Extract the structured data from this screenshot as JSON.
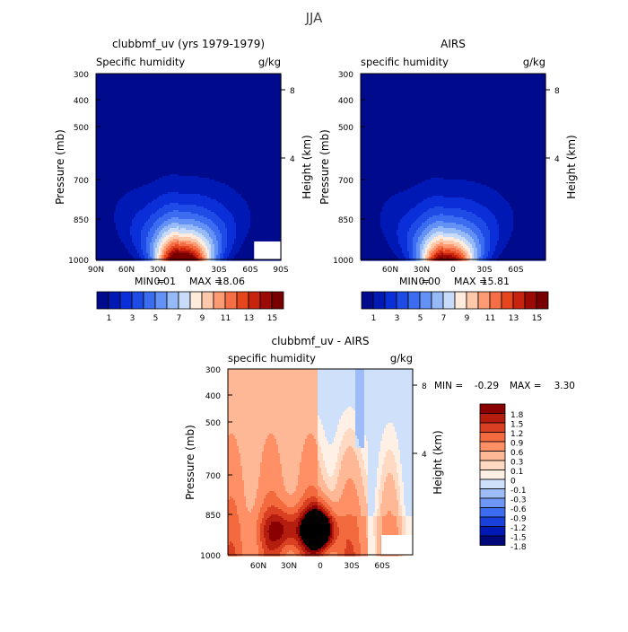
{
  "title": "JJA",
  "colors": {
    "field_scale": [
      "#000a8c",
      "#0019b4",
      "#0a2ed7",
      "#1e4be6",
      "#3c6cf0",
      "#6491f5",
      "#96b9f8",
      "#c8dcfa",
      "#ffebdc",
      "#ffc8aa",
      "#ff9b73",
      "#f56e46",
      "#e6461e",
      "#c8230f",
      "#9b0a05",
      "#780000"
    ],
    "diff_scale": [
      "#00087a",
      "#0019b4",
      "#1a40dc",
      "#3c6cf0",
      "#6e96f5",
      "#9ebcf8",
      "#cfe0fa",
      "#fff0e6",
      "#ffd9c2",
      "#ffb896",
      "#ff8f64",
      "#f26a3e",
      "#d94021",
      "#b51e0e",
      "#8a0000"
    ]
  },
  "chart_data": [
    {
      "type": "heatmap",
      "id": "model",
      "title": "clubbmf_uv (yrs 1979-1979)",
      "left_label": "Specific humidity",
      "units": "g/kg",
      "ylabel": "Pressure (mb)",
      "ylabel_right": "Height (km)",
      "pressure_ticks": [
        300,
        400,
        500,
        700,
        850,
        1000
      ],
      "height_ticks": [
        "8",
        "4"
      ],
      "x_ticks": [
        "90N",
        "60N",
        "30N",
        "0",
        "30S",
        "60S",
        "90S"
      ],
      "xlim": [
        90,
        -90
      ],
      "ylim_mb": [
        1000,
        300
      ],
      "stats": {
        "min_label": "MIN =",
        "min": "0.01",
        "max_label": "MAX =",
        "max": "18.06"
      },
      "colorbar_labels": [
        "1",
        "3",
        "5",
        "7",
        "9",
        "11",
        "13",
        "15"
      ],
      "max_value": 18.06,
      "peak_lat": 5,
      "missing_region": {
        "lat_from": -64,
        "lat_to": -90,
        "p_from": 890,
        "p_to": 1000
      }
    },
    {
      "type": "heatmap",
      "id": "obs",
      "title": "AIRS",
      "left_label": "specific humidity",
      "units": "g/kg",
      "ylabel": "Pressure (mb)",
      "ylabel_right": "Height (km)",
      "pressure_ticks": [
        300,
        400,
        500,
        700,
        850,
        1000
      ],
      "height_ticks": [
        "8",
        "4"
      ],
      "x_ticks": [
        "60N",
        "30N",
        "0",
        "30S",
        "60S"
      ],
      "xlim": [
        88,
        -88
      ],
      "ylim_mb": [
        1000,
        300
      ],
      "stats": {
        "min_label": "MIN =",
        "min": "0.00",
        "max_label": "MAX =",
        "max": "15.81"
      },
      "colorbar_labels": [
        "1",
        "3",
        "5",
        "7",
        "9",
        "11",
        "13",
        "15"
      ],
      "max_value": 15.81,
      "peak_lat": 5
    },
    {
      "type": "heatmap",
      "id": "diff",
      "title": "clubbmf_uv - AIRS",
      "left_label": "specific humidity",
      "units": "g/kg",
      "ylabel": "Pressure (mb)",
      "ylabel_right": "Height (km)",
      "pressure_ticks": [
        300,
        400,
        500,
        700,
        850,
        1000
      ],
      "height_ticks": [
        "8",
        "4"
      ],
      "x_ticks": [
        "60N",
        "30N",
        "0",
        "30S",
        "60S"
      ],
      "xlim": [
        88,
        -88
      ],
      "ylim_mb": [
        1000,
        300
      ],
      "stats": {
        "min_label": "MIN =",
        "min": "-0.29",
        "max_label": "MAX =",
        "max": "3.30"
      },
      "colorbar_labels": [
        "1.8",
        "1.5",
        "1.2",
        "0.9",
        "0.6",
        "0.3",
        "0.1",
        "0",
        "-0.1",
        "-0.3",
        "-0.6",
        "-0.9",
        "-1.2",
        "-1.5",
        "-1.8"
      ],
      "levels": [
        -1.8,
        -1.5,
        -1.2,
        -0.9,
        -0.6,
        -0.3,
        -0.1,
        0,
        0.1,
        0.3,
        0.6,
        0.9,
        1.2,
        1.5,
        1.8
      ],
      "missing_region": {
        "lat_from": -58,
        "lat_to": -88,
        "p_from": 880,
        "p_to": 1000
      }
    }
  ]
}
